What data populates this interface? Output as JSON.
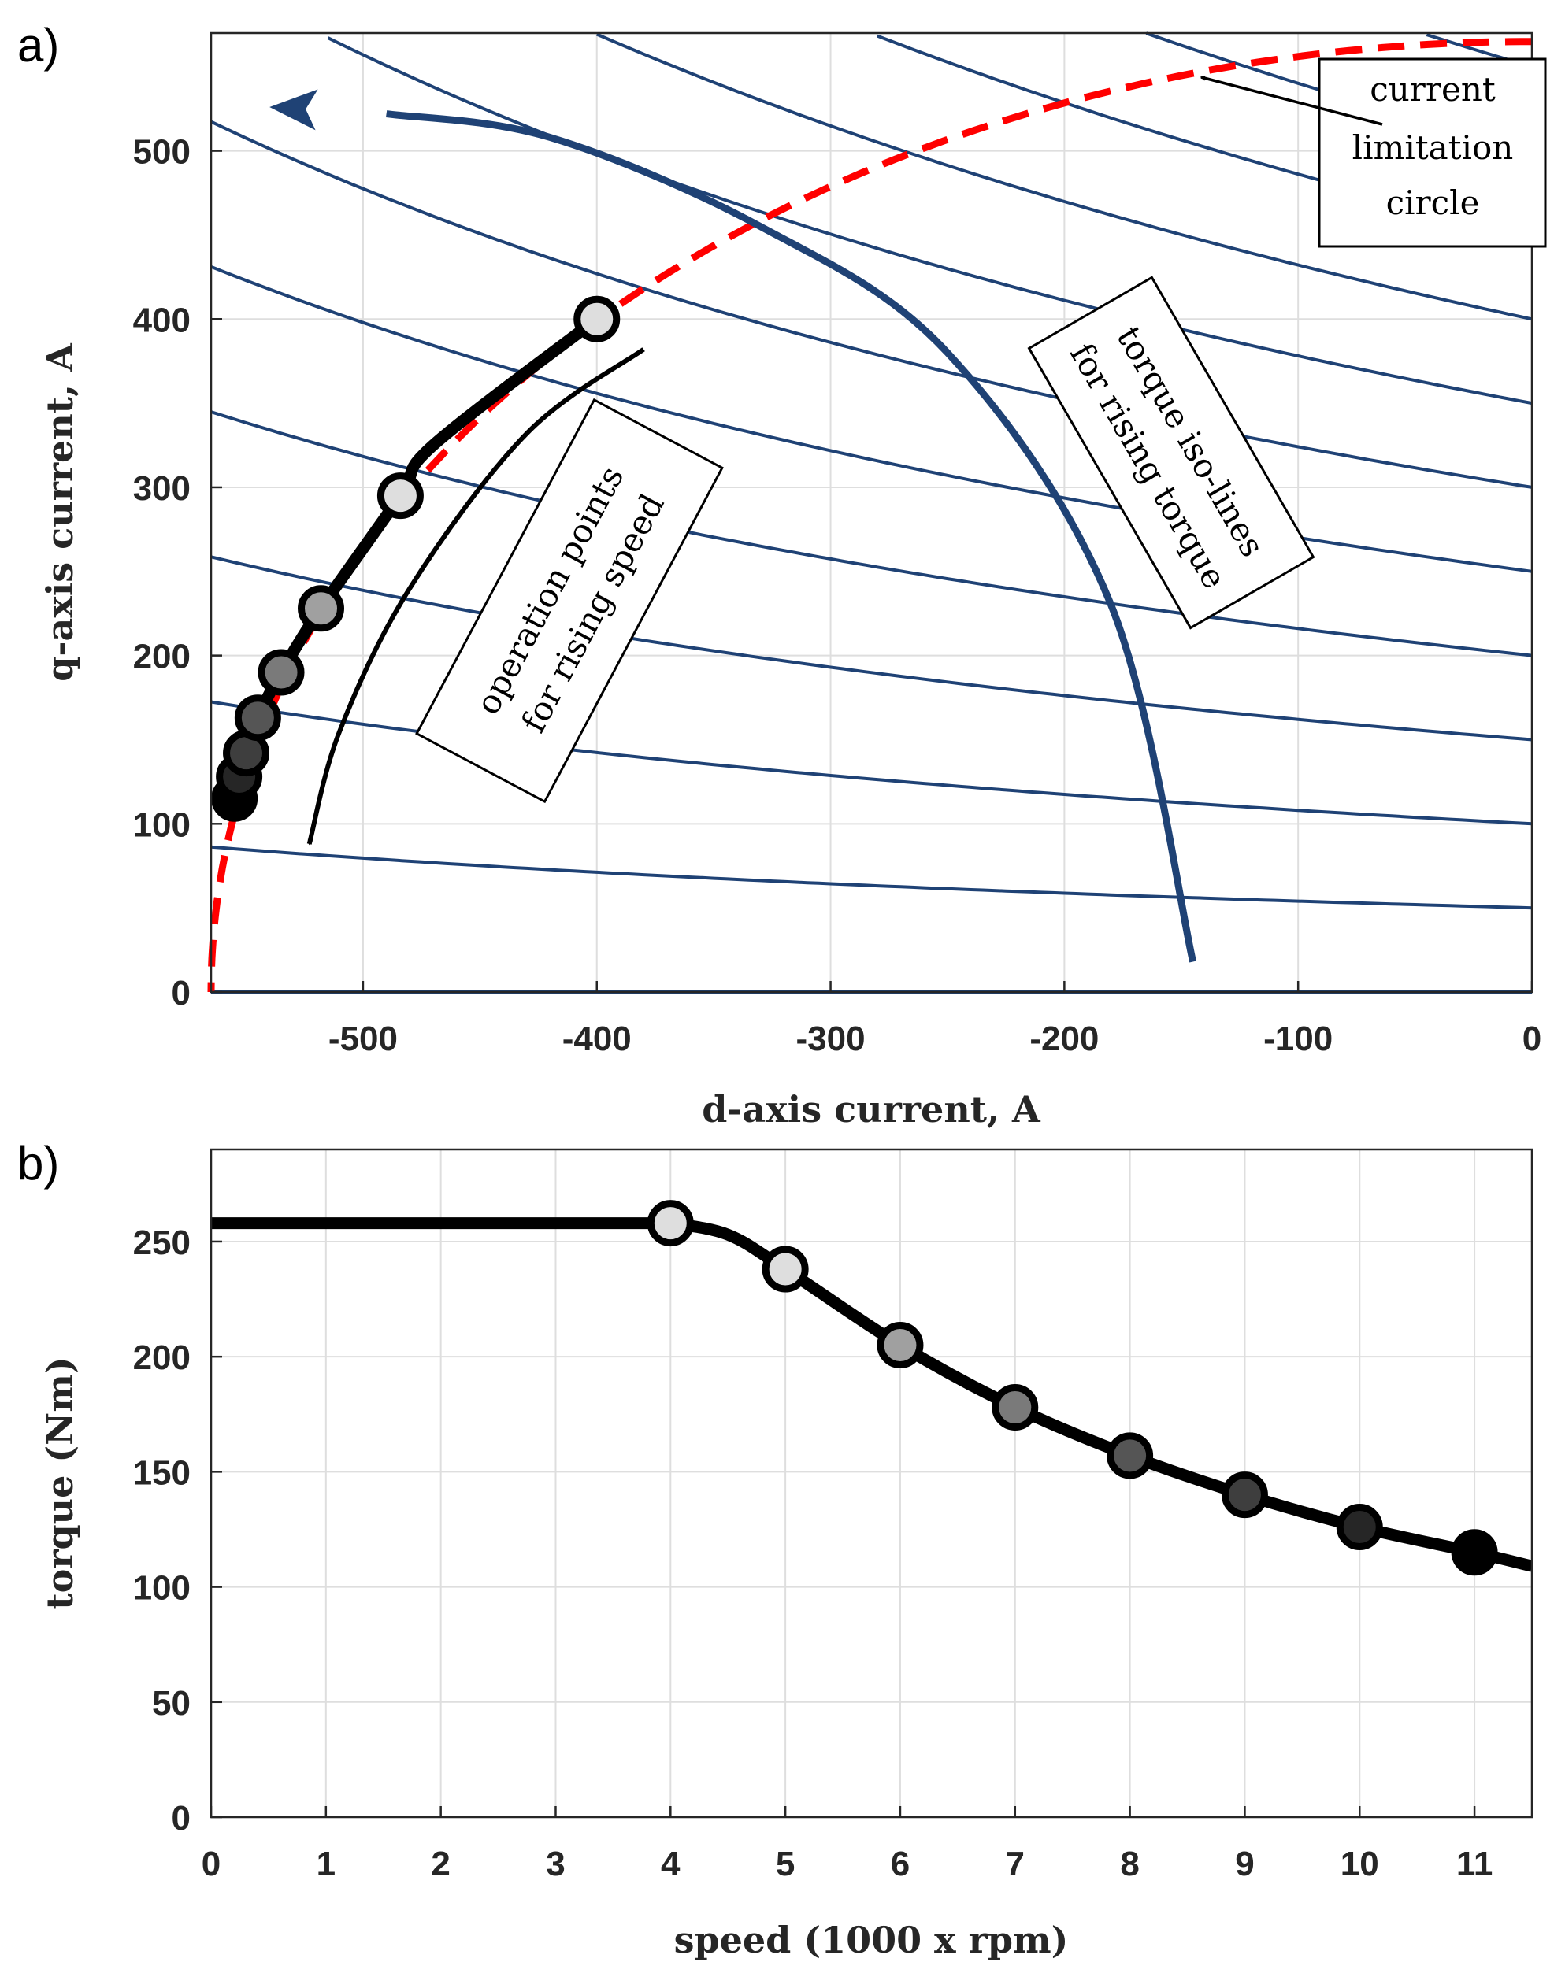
{
  "chart_data": [
    {
      "type": "line",
      "panel_label": "a)",
      "title": "",
      "xlabel": "d-axis current, A",
      "ylabel": "q-axis current, A",
      "xlim": [
        -565,
        0
      ],
      "ylim": [
        0,
        570
      ],
      "xticks": [
        -500,
        -400,
        -300,
        -200,
        -100,
        0
      ],
      "yticks": [
        0,
        100,
        200,
        300,
        400,
        500
      ],
      "grid": true,
      "torque_iso_lines_q_at_d0": [
        0,
        50,
        100,
        150,
        200,
        250,
        300,
        350,
        400,
        450,
        500,
        550
      ],
      "series": [
        {
          "name": "operation points for rising speed",
          "color": "#000000",
          "x": [
            -400,
            -470,
            -484,
            -518,
            -535,
            -545,
            -550,
            -553,
            -555
          ],
          "y": [
            400,
            325,
            295,
            228,
            190,
            163,
            142,
            128,
            115
          ],
          "marker_indices": [
            0,
            2,
            3,
            4,
            5,
            6,
            7,
            8
          ],
          "marker_fills": [
            "#dedede",
            "#dedede",
            "#a0a0a0",
            "#7a7a7a",
            "#555555",
            "#3e3e3e",
            "#262626",
            "#000000"
          ]
        },
        {
          "name": "current limitation circle",
          "color": "#ff0000",
          "style": "dashed",
          "radius": 565
        },
        {
          "name": "speed arrow",
          "color": "#000000",
          "x": [
            -380,
            -430,
            -480,
            -510,
            -523
          ],
          "y": [
            382,
            332,
            240,
            155,
            88
          ]
        },
        {
          "name": "rising torque arrow",
          "color": "#1f4275",
          "x": [
            -145,
            -180,
            -250,
            -330,
            -420,
            -490
          ],
          "y": [
            18,
            230,
            380,
            455,
            508,
            522
          ]
        }
      ],
      "annotations": [
        {
          "id": "limit",
          "lines": [
            "current",
            "limitation",
            "circle"
          ]
        },
        {
          "id": "iso",
          "lines": [
            "torque iso-lines",
            "for rising torque"
          ]
        },
        {
          "id": "ops",
          "lines": [
            "operation points",
            "for rising speed"
          ]
        }
      ]
    },
    {
      "type": "line",
      "panel_label": "b)",
      "title": "",
      "xlabel": "speed (1000 x rpm)",
      "ylabel": "torque (Nm)",
      "xlim": [
        0,
        11.5
      ],
      "ylim": [
        0,
        290
      ],
      "xticks": [
        0,
        1,
        2,
        3,
        4,
        5,
        6,
        7,
        8,
        9,
        10,
        11
      ],
      "yticks": [
        0,
        50,
        100,
        150,
        200,
        250
      ],
      "grid": true,
      "series": [
        {
          "name": "torque vs speed",
          "color": "#000000",
          "x": [
            0,
            4,
            4.5,
            5,
            6,
            7,
            8,
            9,
            10,
            11,
            11.5
          ],
          "y": [
            258,
            258,
            253,
            238,
            205,
            178,
            157,
            140,
            126,
            115,
            109
          ],
          "marker_indices": [
            1,
            3,
            4,
            5,
            6,
            7,
            8,
            9
          ],
          "marker_fills": [
            "#dedede",
            "#dedede",
            "#a0a0a0",
            "#7a7a7a",
            "#555555",
            "#3e3e3e",
            "#262626",
            "#000000"
          ]
        }
      ]
    }
  ]
}
